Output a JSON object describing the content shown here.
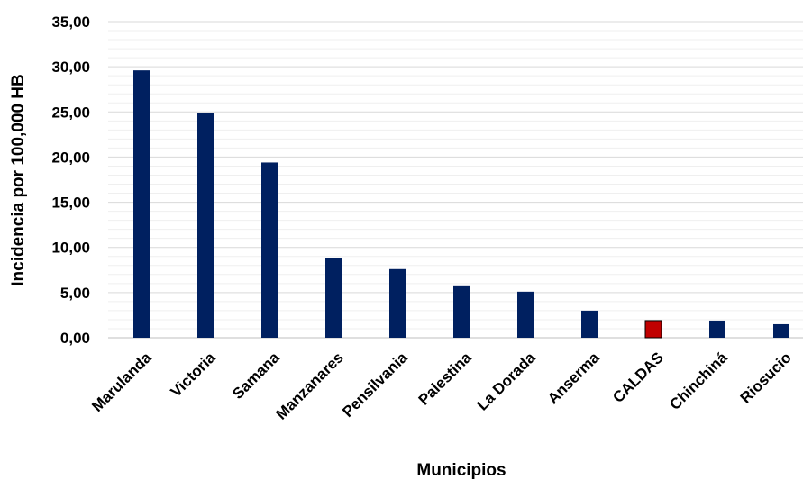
{
  "chart_data": {
    "type": "bar",
    "title": "",
    "categories": [
      "Marulanda",
      "Victoria",
      "Samana",
      "Manzanares",
      "Pensilvania",
      "Palestina",
      "La Dorada",
      "Anserma",
      "CALDAS",
      "Chinchiná",
      "Riosucio"
    ],
    "values": [
      29.6,
      24.9,
      19.4,
      8.8,
      7.6,
      5.7,
      5.1,
      3.0,
      1.9,
      1.9,
      1.5
    ],
    "bar_colors": [
      "#002060",
      "#002060",
      "#002060",
      "#002060",
      "#002060",
      "#002060",
      "#002060",
      "#002060",
      "#C00000",
      "#002060",
      "#002060"
    ],
    "xlabel": "Municipios",
    "ylabel": "Incidencia por 100,000 HB",
    "ylim": [
      0,
      35
    ],
    "yticks": [
      0,
      5,
      10,
      15,
      20,
      25,
      30,
      35
    ],
    "ytick_labels": [
      "0,00",
      "5,00",
      "10,00",
      "15,00",
      "20,00",
      "25,00",
      "30,00",
      "35,00"
    ],
    "grid": true,
    "legend": "none"
  }
}
